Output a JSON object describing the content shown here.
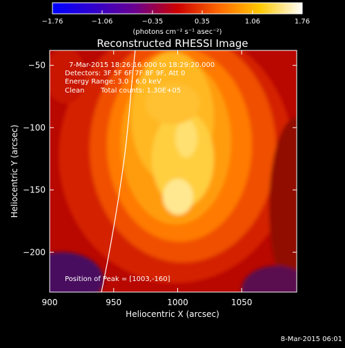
{
  "colorbar": {
    "ticks": [
      "-1.76",
      "-1.06",
      "-0.35",
      "0.35",
      "1.06",
      "1.76"
    ],
    "units_label": "(photons cm⁻² s⁻¹ asec⁻²)"
  },
  "chart_data": {
    "type": "heatmap",
    "title": "Reconstructed RHESSI Image",
    "xlabel": "Heliocentric X (arcsec)",
    "ylabel": "Heliocentric Y (arcsec)",
    "xlim": [
      900,
      1093
    ],
    "ylim": [
      -232,
      -38
    ],
    "x_ticks": [
      900,
      950,
      1000,
      1050
    ],
    "y_ticks": [
      -50,
      -100,
      -150,
      -200
    ],
    "value_range": [
      -1.76,
      1.76
    ],
    "grid": false,
    "peak": [
      1003,
      -160
    ],
    "annotations": {
      "time_range": "7-Mar-2015 18:26:16.000 to 18:29:20.000",
      "detectors": "Detectors: 3F 5F 6F 7F 8F 9F, Att 0",
      "energy": "Energy Range: 3.0 - 6.0 keV",
      "method": "Clean",
      "counts": "Total counts: 1.30E+05",
      "peak_text": "Position of Peak = [1003,-160]"
    }
  },
  "footer": {
    "timestamp": "8-Mar-2015 06:01"
  }
}
